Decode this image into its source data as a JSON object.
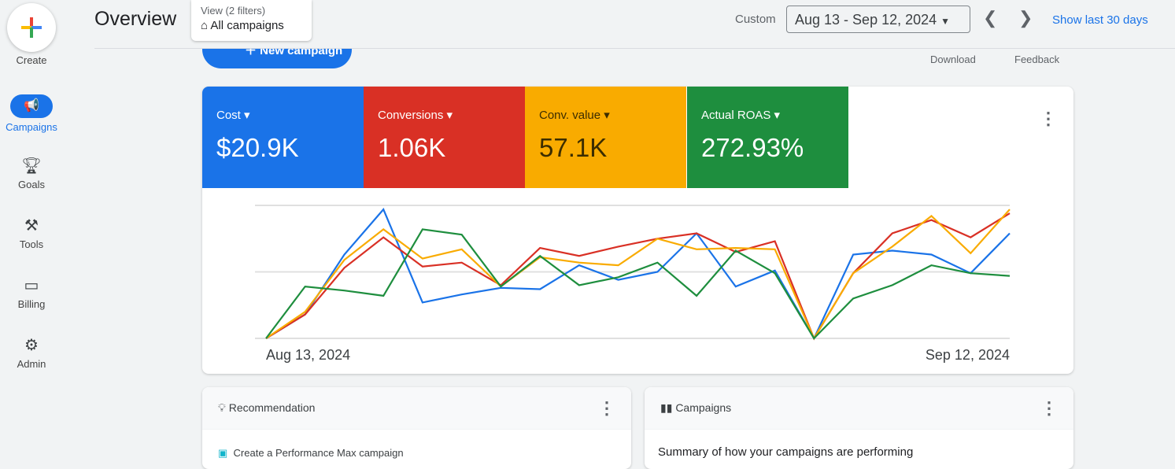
{
  "sidebar": {
    "create": "Create",
    "items": [
      {
        "label": "Campaigns",
        "icon": "megaphone-icon"
      },
      {
        "label": "Goals",
        "icon": "trophy-icon"
      },
      {
        "label": "Tools",
        "icon": "tools-icon"
      },
      {
        "label": "Billing",
        "icon": "credit-card-icon"
      },
      {
        "label": "Admin",
        "icon": "gear-icon"
      }
    ]
  },
  "header": {
    "title": "Overview",
    "view_label": "View (2 filters)",
    "view_value": "All campaigns",
    "custom": "Custom",
    "date_range": "Aug 13 - Sep 12, 2024",
    "show_last": "Show last 30 days",
    "new_campaign": "New campaign",
    "download": "Download",
    "feedback": "Feedback"
  },
  "metrics": [
    {
      "label": "Cost",
      "value": "$20.9K",
      "color": "#1a73e8"
    },
    {
      "label": "Conversions",
      "value": "1.06K",
      "color": "#d93025"
    },
    {
      "label": "Conv. value",
      "value": "57.1K",
      "color": "#f9ab00"
    },
    {
      "label": "Actual ROAS",
      "value": "272.93%",
      "color": "#1e8e3e"
    }
  ],
  "chart_data": {
    "type": "line",
    "x_start": "Aug 13, 2024",
    "x_end": "Sep 12, 2024",
    "ylim": [
      0,
      100
    ],
    "series": [
      {
        "name": "Cost",
        "color": "#1a73e8",
        "values": [
          0,
          18,
          63,
          97,
          27,
          33,
          38,
          37,
          55,
          44,
          50,
          79,
          39,
          51,
          0,
          63,
          66,
          63,
          49,
          79
        ]
      },
      {
        "name": "Conversions",
        "color": "#d93025",
        "values": [
          0,
          18,
          53,
          76,
          54,
          57,
          40,
          68,
          62,
          69,
          75,
          79,
          65,
          73,
          0,
          49,
          79,
          89,
          76,
          94
        ]
      },
      {
        "name": "Conv. value",
        "color": "#f9ab00",
        "values": [
          0,
          20,
          59,
          82,
          60,
          67,
          39,
          61,
          57,
          55,
          75,
          67,
          68,
          67,
          0,
          49,
          69,
          92,
          64,
          97
        ]
      },
      {
        "name": "Actual ROAS",
        "color": "#1e8e3e",
        "values": [
          0,
          39,
          36,
          32,
          82,
          78,
          39,
          62,
          40,
          46,
          57,
          32,
          66,
          49,
          0,
          30,
          40,
          55,
          49,
          47
        ]
      }
    ]
  },
  "recommendation": {
    "title": "Recommendation",
    "item": "Create a Performance Max campaign"
  },
  "campaigns": {
    "title": "Campaigns",
    "summary": "Summary of how your campaigns are performing"
  }
}
